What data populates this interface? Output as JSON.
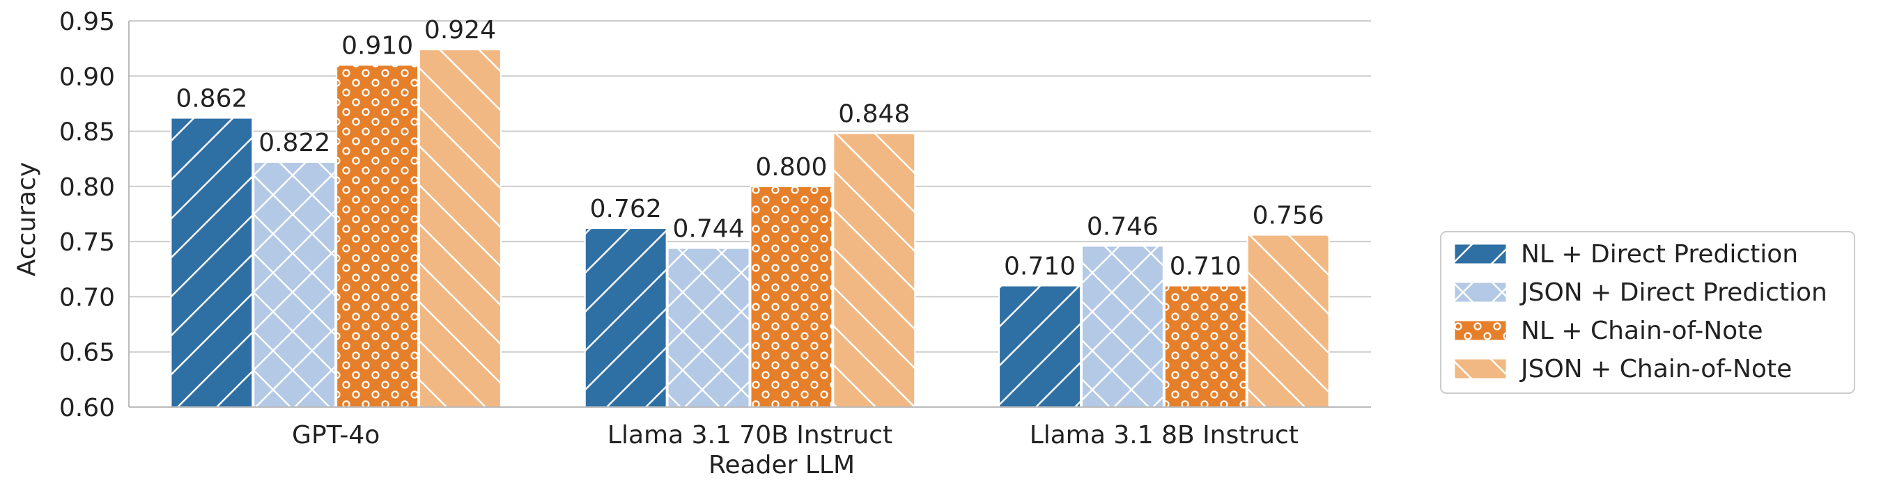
{
  "chart_data": {
    "type": "bar",
    "xlabel": "Reader LLM",
    "ylabel": "Accuracy",
    "ylim": [
      0.6,
      0.95
    ],
    "yticks": [
      "0.60",
      "0.65",
      "0.70",
      "0.75",
      "0.80",
      "0.85",
      "0.90",
      "0.95"
    ],
    "grid": "horizontal",
    "legend_position": "right",
    "categories": [
      "GPT-4o",
      "Llama 3.1 70B Instruct",
      "Llama 3.1 8B Instruct"
    ],
    "series": [
      {
        "name": "NL + Direct Prediction",
        "values": [
          0.862,
          0.762,
          0.71
        ],
        "labels": [
          "0.862",
          "0.762",
          "0.710"
        ],
        "color": "#2e6fa4",
        "pattern": "diagonal-lines"
      },
      {
        "name": "JSON + Direct Prediction",
        "values": [
          0.822,
          0.744,
          0.746
        ],
        "labels": [
          "0.822",
          "0.744",
          "0.746"
        ],
        "color": "#b3c9e6",
        "pattern": "crosshatch"
      },
      {
        "name": "NL + Chain-of-Note",
        "values": [
          0.91,
          0.8,
          0.71
        ],
        "labels": [
          "0.910",
          "0.800",
          "0.710"
        ],
        "color": "#e67f2a",
        "pattern": "circles"
      },
      {
        "name": "JSON + Chain-of-Note",
        "values": [
          0.924,
          0.848,
          0.756
        ],
        "labels": [
          "0.924",
          "0.848",
          "0.756"
        ],
        "color": "#f2b883",
        "pattern": "back-diagonal-lines"
      }
    ]
  }
}
